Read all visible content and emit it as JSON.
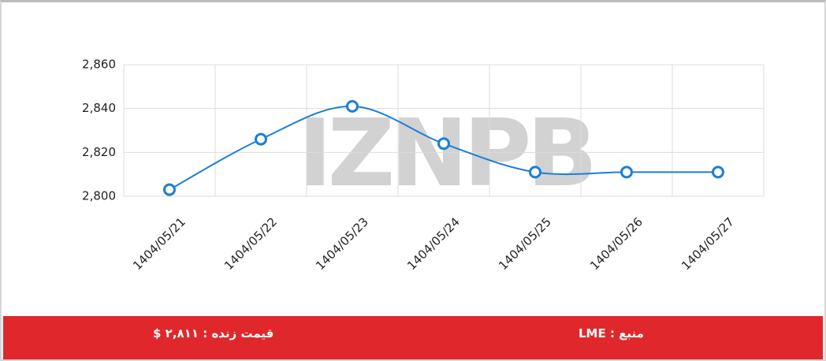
{
  "chart_data": {
    "type": "line",
    "watermark": "IZNPB",
    "categories": [
      "1404/05/21",
      "1404/05/22",
      "1404/05/23",
      "1404/05/24",
      "1404/05/25",
      "1404/05/26",
      "1404/05/27"
    ],
    "series": [
      {
        "color": "#1b7fd6",
        "values": [
          2803,
          2826,
          2841,
          2824,
          2811,
          2811,
          2811
        ]
      }
    ],
    "ylim": [
      2800,
      2860
    ],
    "yticks": [
      {
        "value": 2800,
        "label": "2,800"
      },
      {
        "value": 2820,
        "label": "2,820"
      },
      {
        "value": 2840,
        "label": "2,840"
      },
      {
        "value": 2860,
        "label": "2,860"
      }
    ],
    "grid": true,
    "smooth": true
  },
  "footer": {
    "live_price": "قیمت زنده : ۲,۸۱۱ $",
    "source": "منبع : LME"
  }
}
